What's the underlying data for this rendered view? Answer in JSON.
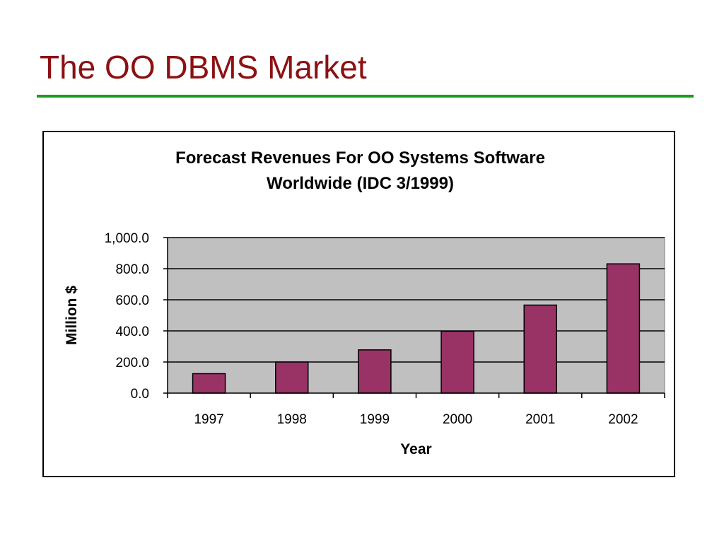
{
  "slide": {
    "title": "The OO DBMS Market"
  },
  "colors": {
    "title": "#8b1113",
    "rule": "#1a9d1a",
    "plot_bg": "#c0c0c0",
    "bar": "#993366",
    "gridline": "#000000"
  },
  "chart_data": {
    "type": "bar",
    "title_lines": [
      "Forecast Revenues For OO Systems Software",
      "Worldwide (IDC 3/1999)"
    ],
    "xlabel": "Year",
    "ylabel": "Million $",
    "categories": [
      "1997",
      "1998",
      "1999",
      "2000",
      "2001",
      "2002"
    ],
    "values": [
      125,
      200,
      278,
      398,
      566,
      831
    ],
    "ylim": [
      0,
      1000
    ],
    "yticks": [
      0,
      200,
      400,
      600,
      800,
      1000
    ],
    "ytick_labels": [
      "0.0",
      "200.0",
      "400.0",
      "600.0",
      "800.0",
      "1,000.0"
    ],
    "grid": true,
    "legend": false
  }
}
